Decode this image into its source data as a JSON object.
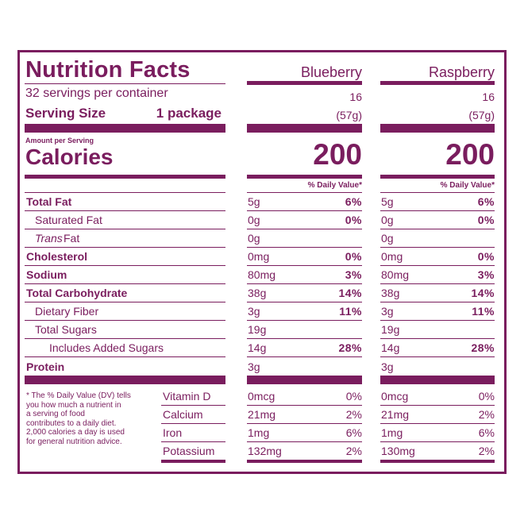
{
  "title": "Nutrition Facts",
  "servings_per_container": "32 servings per container",
  "serving_size_label": "Serving Size",
  "serving_size_value": "1 package",
  "amount_per_serving": "Amount per Serving",
  "calories_label": "Calories",
  "dv_header": "% Daily Value*",
  "columns": [
    {
      "name": "Blueberry",
      "servings": "16",
      "serving_size": "(57g)",
      "calories": "200",
      "total_fat": {
        "amount": "5g",
        "dv": "6%"
      },
      "saturated_fat": {
        "amount": "0g",
        "dv": "0%"
      },
      "trans_fat": {
        "amount": "0g"
      },
      "cholesterol": {
        "amount": "0mg",
        "dv": "0%"
      },
      "sodium": {
        "amount": "80mg",
        "dv": "3%"
      },
      "total_carbohydrate": {
        "amount": "38g",
        "dv": "14%"
      },
      "dietary_fiber": {
        "amount": "3g",
        "dv": "11%"
      },
      "total_sugars": {
        "amount": "19g"
      },
      "added_sugars": {
        "amount": "14g",
        "dv": "28%"
      },
      "protein": {
        "amount": "3g"
      },
      "vitamin_d": {
        "amount": "0mcg",
        "dv": "0%"
      },
      "calcium": {
        "amount": "21mg",
        "dv": "2%"
      },
      "iron": {
        "amount": "1mg",
        "dv": "6%"
      },
      "potassium": {
        "amount": "132mg",
        "dv": "2%"
      }
    },
    {
      "name": "Raspberry",
      "servings": "16",
      "serving_size": "(57g)",
      "calories": "200",
      "total_fat": {
        "amount": "5g",
        "dv": "6%"
      },
      "saturated_fat": {
        "amount": "0g",
        "dv": "0%"
      },
      "trans_fat": {
        "amount": "0g"
      },
      "cholesterol": {
        "amount": "0mg",
        "dv": "0%"
      },
      "sodium": {
        "amount": "80mg",
        "dv": "3%"
      },
      "total_carbohydrate": {
        "amount": "38g",
        "dv": "14%"
      },
      "dietary_fiber": {
        "amount": "3g",
        "dv": "11%"
      },
      "total_sugars": {
        "amount": "19g"
      },
      "added_sugars": {
        "amount": "14g",
        "dv": "28%"
      },
      "protein": {
        "amount": "3g"
      },
      "vitamin_d": {
        "amount": "0mcg",
        "dv": "0%"
      },
      "calcium": {
        "amount": "21mg",
        "dv": "2%"
      },
      "iron": {
        "amount": "1mg",
        "dv": "6%"
      },
      "potassium": {
        "amount": "130mg",
        "dv": "2%"
      }
    }
  ],
  "nutrients": {
    "total_fat": "Total Fat",
    "saturated_fat": "Saturated Fat",
    "trans_fat_italic": "Trans",
    "trans_fat_rest": " Fat",
    "cholesterol": "Cholesterol",
    "sodium": "Sodium",
    "total_carbohydrate": "Total Carbohydrate",
    "dietary_fiber": "Dietary Fiber",
    "total_sugars": "Total Sugars",
    "added_sugars": "Includes Added Sugars",
    "protein": "Protein"
  },
  "vitamins": {
    "vitamin_d": "Vitamin D",
    "calcium": "Calcium",
    "iron": "Iron",
    "potassium": "Potassium"
  },
  "footnote": [
    "* The % Daily Value (DV) tells",
    "you how much a nutrient in",
    "a serving of food",
    "contributes to a daily diet.",
    "2,000 calories a day is used",
    "for general nutrition advice."
  ],
  "colors": {
    "ink": "#7a1d5e",
    "background": "#ffffff"
  }
}
